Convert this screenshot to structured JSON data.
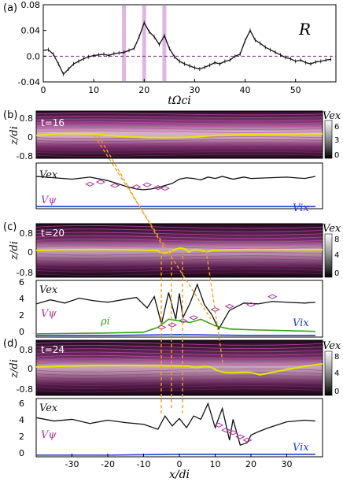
{
  "panel_labels": {
    "a": "(a)",
    "b": "(b)",
    "c": "(c)",
    "d": "(d)"
  },
  "chart_data": [
    {
      "type": "line",
      "panel": "a",
      "title": "R",
      "xlabel": "tΩci",
      "ylabel": "",
      "xlim": [
        0,
        58
      ],
      "ylim": [
        -0.04,
        0.08
      ],
      "x_ticks": [
        "0",
        "10",
        "20",
        "30",
        "40",
        "50"
      ],
      "y_ticks": [
        "-0.04",
        "0.0",
        "0.04",
        "0.08"
      ],
      "highlight_times": [
        16,
        20,
        24
      ],
      "series": [
        {
          "x": [
            0,
            1,
            2,
            3,
            4,
            5,
            6,
            7,
            8,
            9,
            10,
            11,
            12,
            13,
            14,
            15,
            16,
            17,
            18,
            19,
            20,
            21,
            22,
            23,
            24,
            25,
            26,
            27,
            28,
            29,
            30,
            31,
            32,
            33,
            34,
            35,
            36,
            37,
            38,
            39,
            40,
            41,
            42,
            43,
            44,
            45,
            46,
            47,
            48,
            49,
            50,
            51,
            52,
            53,
            54,
            55,
            56,
            57
          ],
          "y": [
            0.009,
            0.01,
            0.003,
            -0.012,
            -0.028,
            -0.02,
            -0.012,
            -0.008,
            -0.004,
            -0.001,
            0.001,
            0.002,
            0.003,
            0.001,
            0.004,
            0.005,
            0.006,
            0.009,
            0.012,
            0.03,
            0.052,
            0.038,
            0.03,
            0.018,
            0.032,
            0.012,
            -0.001,
            -0.008,
            -0.012,
            -0.015,
            -0.018,
            -0.02,
            -0.017,
            -0.014,
            -0.01,
            -0.012,
            -0.008,
            -0.006,
            0.0,
            0.003,
            0.024,
            0.04,
            0.025,
            0.02,
            0.014,
            0.01,
            0.006,
            0.002,
            -0.002,
            -0.004,
            -0.008,
            -0.006,
            -0.01,
            -0.012,
            -0.009,
            -0.008,
            -0.006,
            -0.005
          ]
        }
      ]
    },
    {
      "type": "heatmap",
      "panel": "b",
      "annotation": "t=16",
      "ylabel": "z/di",
      "y_ticks": [
        "0.8",
        "0",
        "-0.8"
      ],
      "colorbar_label": "Vex",
      "colorbar_ticks": [
        "6",
        "3",
        "0"
      ]
    },
    {
      "type": "line",
      "panel": "b-lower",
      "xlim": [
        -40,
        40
      ],
      "series": [
        {
          "name": "Vex",
          "color": "#111111",
          "x": [
            -40,
            -35,
            -30,
            -25,
            -20,
            -15,
            -12,
            -10,
            -8,
            -6,
            -4,
            -2,
            0,
            2,
            4,
            6,
            8,
            10,
            12,
            15,
            18,
            20,
            25,
            30,
            35,
            38
          ],
          "y": [
            4.6,
            4.4,
            4.2,
            4.5,
            4.0,
            3.2,
            2.8,
            2.7,
            2.8,
            3.0,
            3.3,
            3.6,
            4.2,
            4.4,
            4.3,
            4.1,
            4.5,
            4.3,
            4.6,
            4.2,
            4.5,
            4.3,
            4.4,
            4.5,
            4.3,
            4.6
          ]
        },
        {
          "name": "Vψ",
          "color": "#b0309a",
          "x": [
            -25,
            -22,
            -18,
            -12,
            -9,
            -6,
            -4
          ],
          "y": [
            3.5,
            3.8,
            3.3,
            3.1,
            3.4,
            3.0,
            2.9
          ]
        },
        {
          "name": "Vix",
          "color": "#1e3fd0",
          "x": [
            -40,
            -20,
            0,
            20,
            38
          ],
          "y": [
            0.3,
            0.3,
            0.3,
            0.3,
            0.3
          ]
        }
      ]
    },
    {
      "type": "heatmap",
      "panel": "c",
      "annotation": "t=20",
      "ylabel": "z/di",
      "y_ticks": [
        "0.8",
        "0",
        "-0.8"
      ],
      "colorbar_label": "Vex",
      "colorbar_ticks": [
        "8",
        "4",
        "0"
      ]
    },
    {
      "type": "line",
      "panel": "c-lower",
      "xlim": [
        -40,
        40
      ],
      "series": [
        {
          "name": "Vex",
          "color": "#111111",
          "x": [
            -40,
            -36,
            -32,
            -28,
            -24,
            -20,
            -16,
            -12,
            -9,
            -7,
            -5,
            -3,
            -1,
            0,
            1,
            3,
            5,
            7,
            9,
            11,
            14,
            18,
            22,
            26,
            30,
            35,
            38
          ],
          "y": [
            4.1,
            4.6,
            4.2,
            4.8,
            4.5,
            4.3,
            4.6,
            4.9,
            3.6,
            5.0,
            1.6,
            5.5,
            2.2,
            5.4,
            2.4,
            4.2,
            6.5,
            4.0,
            2.8,
            1.0,
            3.3,
            4.2,
            4.1,
            4.4,
            4.3,
            4.2,
            4.3
          ]
        },
        {
          "name": "Vψ",
          "color": "#b0309a",
          "x": [
            -5,
            -2,
            1,
            4,
            10,
            14,
            20,
            26
          ],
          "y": [
            1.2,
            1.5,
            2.0,
            2.4,
            3.4,
            3.8,
            4.0,
            5.0
          ]
        },
        {
          "name": "ρi",
          "color": "#3aa01c",
          "x": [
            -40,
            -20,
            -10,
            -6,
            -3,
            0,
            3,
            6,
            10,
            14,
            20,
            30,
            38
          ],
          "y": [
            0.4,
            0.5,
            0.6,
            1.2,
            2.2,
            2.0,
            1.8,
            2.2,
            1.4,
            1.0,
            0.9,
            0.8,
            0.7
          ]
        },
        {
          "name": "Vix",
          "color": "#1e3fd0",
          "x": [
            -40,
            -20,
            0,
            20,
            38
          ],
          "y": [
            0.2,
            0.2,
            0.3,
            0.2,
            0.2
          ]
        }
      ]
    },
    {
      "type": "heatmap",
      "panel": "d",
      "annotation": "t=24",
      "ylabel": "z/di",
      "y_ticks": [
        "0.8",
        "0",
        "-0.8"
      ],
      "colorbar_label": "Vex",
      "colorbar_ticks": [
        "8",
        "4",
        "0"
      ]
    },
    {
      "type": "line",
      "panel": "d-lower",
      "xlim": [
        -40,
        40
      ],
      "xlabel": "x/di",
      "x_ticks": [
        "-30",
        "-20",
        "-10",
        "0",
        "10",
        "20",
        "30"
      ],
      "series": [
        {
          "name": "Vex",
          "color": "#111111",
          "x": [
            -40,
            -35,
            -30,
            -25,
            -20,
            -15,
            -10,
            -6,
            -4,
            -2,
            0,
            2,
            4,
            6,
            8,
            10,
            12,
            14,
            15,
            17,
            19,
            20,
            22,
            25,
            30,
            35,
            38
          ],
          "y": [
            4.7,
            4.3,
            4.5,
            4.0,
            4.4,
            4.1,
            3.9,
            3.3,
            4.9,
            3.7,
            4.6,
            3.5,
            4.9,
            4.5,
            6.4,
            3.5,
            5.8,
            2.0,
            4.5,
            1.4,
            1.7,
            2.6,
            3.0,
            3.5,
            4.2,
            4.4,
            4.3
          ]
        },
        {
          "name": "Vψ",
          "color": "#b0309a",
          "x": [
            11,
            13,
            15,
            17,
            19
          ],
          "y": [
            3.8,
            3.2,
            2.9,
            2.4,
            2.0
          ]
        },
        {
          "name": "Vix",
          "color": "#1e3fd0",
          "x": [
            -40,
            -20,
            0,
            20,
            38
          ],
          "y": [
            0.2,
            0.2,
            0.3,
            0.3,
            0.3
          ]
        }
      ]
    }
  ]
}
